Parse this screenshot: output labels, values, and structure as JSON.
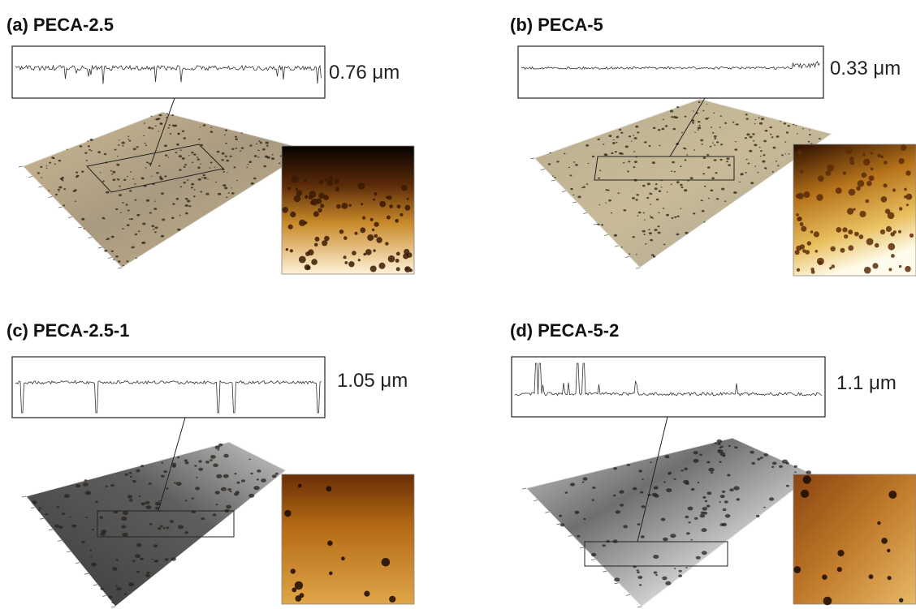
{
  "panels": [
    {
      "label": "(a)",
      "name": "PECA-2.5",
      "height": "0.76 μm"
    },
    {
      "label": "(b)",
      "name": "PECA-5",
      "height": "0.33 μm"
    },
    {
      "label": "(c)",
      "name": "PECA-2.5-1",
      "height": "1.05 μm"
    },
    {
      "label": "(d)",
      "name": "PECA-5-2",
      "height": "1.1 μm"
    }
  ]
}
